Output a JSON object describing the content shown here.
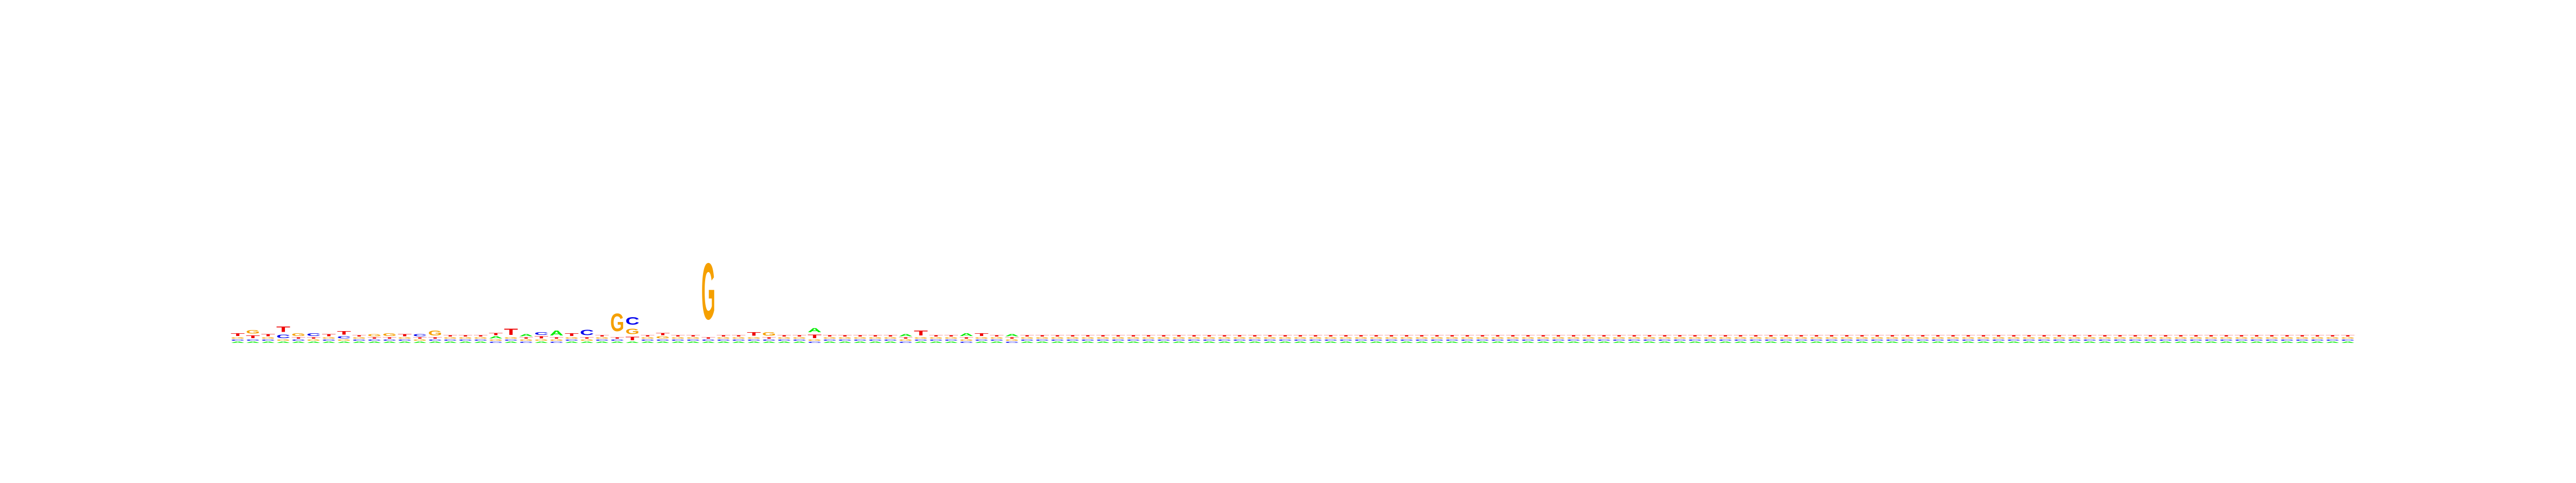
{
  "chart_data": {
    "type": "sequence-logo",
    "title": "",
    "xlabel": "",
    "ylabel": "",
    "alphabet": [
      "A",
      "C",
      "G",
      "T"
    ],
    "colors": {
      "A": "#00ee00",
      "C": "#0000ee",
      "G": "#f5a000",
      "T": "#ee0000"
    },
    "ylim": [
      0,
      2
    ],
    "positions": [
      {
        "i": 1,
        "A": 0.02,
        "C": 0.02,
        "G": 0.02,
        "T": 0.04
      },
      {
        "i": 2,
        "A": 0.02,
        "C": 0.02,
        "G": 0.05,
        "T": 0.04
      },
      {
        "i": 3,
        "A": 0.02,
        "C": 0.02,
        "G": 0.02,
        "T": 0.03
      },
      {
        "i": 4,
        "A": 0.02,
        "C": 0.05,
        "G": 0.02,
        "T": 0.08
      },
      {
        "i": 5,
        "A": 0.02,
        "C": 0.02,
        "G": 0.04,
        "T": 0.02
      },
      {
        "i": 6,
        "A": 0.02,
        "C": 0.04,
        "G": 0.02,
        "T": 0.02
      },
      {
        "i": 7,
        "A": 0.02,
        "C": 0.02,
        "G": 0.02,
        "T": 0.03
      },
      {
        "i": 8,
        "A": 0.02,
        "C": 0.03,
        "G": 0.02,
        "T": 0.05
      },
      {
        "i": 9,
        "A": 0.02,
        "C": 0.02,
        "G": 0.02,
        "T": 0.02
      },
      {
        "i": 10,
        "A": 0.02,
        "C": 0.02,
        "G": 0.03,
        "T": 0.02
      },
      {
        "i": 11,
        "A": 0.02,
        "C": 0.02,
        "G": 0.04,
        "T": 0.02
      },
      {
        "i": 12,
        "A": 0.02,
        "C": 0.02,
        "G": 0.02,
        "T": 0.03
      },
      {
        "i": 13,
        "A": 0.02,
        "C": 0.03,
        "G": 0.02,
        "T": 0.02
      },
      {
        "i": 14,
        "A": 0.02,
        "C": 0.02,
        "G": 0.07,
        "T": 0.02
      },
      {
        "i": 15,
        "A": 0.02,
        "C": 0.02,
        "G": 0.02,
        "T": 0.02
      },
      {
        "i": 16,
        "A": 0.02,
        "C": 0.02,
        "G": 0.02,
        "T": 0.02
      },
      {
        "i": 17,
        "A": 0.02,
        "C": 0.02,
        "G": 0.02,
        "T": 0.02
      },
      {
        "i": 18,
        "A": 0.03,
        "C": 0.02,
        "G": 0.02,
        "T": 0.03
      },
      {
        "i": 19,
        "A": 0.02,
        "C": 0.02,
        "G": 0.02,
        "T": 0.09
      },
      {
        "i": 20,
        "A": 0.03,
        "C": 0.02,
        "G": 0.02,
        "T": 0.02
      },
      {
        "i": 21,
        "A": 0.02,
        "C": 0.04,
        "G": 0.02,
        "T": 0.03
      },
      {
        "i": 22,
        "A": 0.07,
        "C": 0.02,
        "G": 0.02,
        "T": 0.02
      },
      {
        "i": 23,
        "A": 0.02,
        "C": 0.02,
        "G": 0.02,
        "T": 0.04
      },
      {
        "i": 24,
        "A": 0.02,
        "C": 0.08,
        "G": 0.02,
        "T": 0.02
      },
      {
        "i": 25,
        "A": 0.02,
        "C": 0.02,
        "G": 0.02,
        "T": 0.02
      },
      {
        "i": 26,
        "A": 0.02,
        "C": 0.02,
        "G": 0.26,
        "T": 0.02
      },
      {
        "i": 27,
        "A": 0.02,
        "C": 0.11,
        "G": 0.08,
        "T": 0.05
      },
      {
        "i": 28,
        "A": 0.02,
        "C": 0.02,
        "G": 0.02,
        "T": 0.02
      },
      {
        "i": 29,
        "A": 0.02,
        "C": 0.02,
        "G": 0.03,
        "T": 0.03
      },
      {
        "i": 30,
        "A": 0.02,
        "C": 0.02,
        "G": 0.02,
        "T": 0.02
      },
      {
        "i": 31,
        "A": 0.02,
        "C": 0.02,
        "G": 0.02,
        "T": 0.02
      },
      {
        "i": 32,
        "A": 0.02,
        "C": 0.02,
        "G": 0.82,
        "T": 0.02
      },
      {
        "i": 33,
        "A": 0.02,
        "C": 0.02,
        "G": 0.02,
        "T": 0.02
      },
      {
        "i": 34,
        "A": 0.02,
        "C": 0.02,
        "G": 0.02,
        "T": 0.02
      },
      {
        "i": 35,
        "A": 0.02,
        "C": 0.02,
        "G": 0.02,
        "T": 0.05
      },
      {
        "i": 36,
        "A": 0.02,
        "C": 0.02,
        "G": 0.05,
        "T": 0.02
      },
      {
        "i": 37,
        "A": 0.02,
        "C": 0.02,
        "G": 0.02,
        "T": 0.02
      },
      {
        "i": 38,
        "A": 0.02,
        "C": 0.02,
        "G": 0.02,
        "T": 0.02
      },
      {
        "i": 39,
        "A": 0.06,
        "C": 0.02,
        "G": 0.02,
        "T": 0.05
      },
      {
        "i": 40,
        "A": 0.02,
        "C": 0.02,
        "G": 0.02,
        "T": 0.02
      },
      {
        "i": 41,
        "A": 0.02,
        "C": 0.02,
        "G": 0.02,
        "T": 0.02
      },
      {
        "i": 42,
        "A": 0.02,
        "C": 0.02,
        "G": 0.02,
        "T": 0.02
      },
      {
        "i": 43,
        "A": 0.02,
        "C": 0.02,
        "G": 0.02,
        "T": 0.02
      },
      {
        "i": 44,
        "A": 0.02,
        "C": 0.02,
        "G": 0.02,
        "T": 0.02
      },
      {
        "i": 45,
        "A": 0.03,
        "C": 0.02,
        "G": 0.02,
        "T": 0.02
      },
      {
        "i": 46,
        "A": 0.02,
        "C": 0.02,
        "G": 0.02,
        "T": 0.07
      },
      {
        "i": 47,
        "A": 0.02,
        "C": 0.02,
        "G": 0.02,
        "T": 0.02
      },
      {
        "i": 48,
        "A": 0.02,
        "C": 0.02,
        "G": 0.02,
        "T": 0.02
      },
      {
        "i": 49,
        "A": 0.04,
        "C": 0.02,
        "G": 0.02,
        "T": 0.02
      },
      {
        "i": 50,
        "A": 0.02,
        "C": 0.02,
        "G": 0.02,
        "T": 0.04
      },
      {
        "i": 51,
        "A": 0.02,
        "C": 0.02,
        "G": 0.02,
        "T": 0.02
      },
      {
        "i": 52,
        "A": 0.03,
        "C": 0.02,
        "G": 0.02,
        "T": 0.02
      },
      {
        "i": 53,
        "A": 0.02,
        "C": 0.02,
        "G": 0.02,
        "T": 0.02
      },
      {
        "i": 54,
        "A": 0.02,
        "C": 0.02,
        "G": 0.02,
        "T": 0.02
      },
      {
        "i": 55,
        "A": 0.02,
        "C": 0.02,
        "G": 0.02,
        "T": 0.02
      },
      {
        "i": 56,
        "A": 0.02,
        "C": 0.02,
        "G": 0.02,
        "T": 0.02
      },
      {
        "i": 57,
        "A": 0.02,
        "C": 0.02,
        "G": 0.02,
        "T": 0.02
      },
      {
        "i": 58,
        "A": 0.02,
        "C": 0.02,
        "G": 0.02,
        "T": 0.02
      },
      {
        "i": 59,
        "A": 0.02,
        "C": 0.02,
        "G": 0.02,
        "T": 0.02
      },
      {
        "i": 60,
        "A": 0.02,
        "C": 0.02,
        "G": 0.02,
        "T": 0.02
      },
      {
        "i": 61,
        "A": 0.02,
        "C": 0.02,
        "G": 0.02,
        "T": 0.02
      },
      {
        "i": 62,
        "A": 0.02,
        "C": 0.02,
        "G": 0.02,
        "T": 0.02
      },
      {
        "i": 63,
        "A": 0.02,
        "C": 0.02,
        "G": 0.02,
        "T": 0.02
      },
      {
        "i": 64,
        "A": 0.02,
        "C": 0.02,
        "G": 0.02,
        "T": 0.02
      },
      {
        "i": 65,
        "A": 0.02,
        "C": 0.02,
        "G": 0.02,
        "T": 0.02
      },
      {
        "i": 66,
        "A": 0.02,
        "C": 0.02,
        "G": 0.02,
        "T": 0.02
      },
      {
        "i": 67,
        "A": 0.02,
        "C": 0.02,
        "G": 0.02,
        "T": 0.02
      },
      {
        "i": 68,
        "A": 0.02,
        "C": 0.02,
        "G": 0.02,
        "T": 0.02
      },
      {
        "i": 69,
        "A": 0.02,
        "C": 0.02,
        "G": 0.02,
        "T": 0.02
      },
      {
        "i": 70,
        "A": 0.02,
        "C": 0.02,
        "G": 0.02,
        "T": 0.02
      },
      {
        "i": 71,
        "A": 0.02,
        "C": 0.02,
        "G": 0.02,
        "T": 0.02
      },
      {
        "i": 72,
        "A": 0.02,
        "C": 0.02,
        "G": 0.02,
        "T": 0.02
      },
      {
        "i": 73,
        "A": 0.02,
        "C": 0.02,
        "G": 0.02,
        "T": 0.02
      },
      {
        "i": 74,
        "A": 0.02,
        "C": 0.02,
        "G": 0.02,
        "T": 0.02
      },
      {
        "i": 75,
        "A": 0.02,
        "C": 0.02,
        "G": 0.02,
        "T": 0.02
      },
      {
        "i": 76,
        "A": 0.02,
        "C": 0.02,
        "G": 0.02,
        "T": 0.02
      },
      {
        "i": 77,
        "A": 0.02,
        "C": 0.02,
        "G": 0.02,
        "T": 0.02
      },
      {
        "i": 78,
        "A": 0.02,
        "C": 0.02,
        "G": 0.02,
        "T": 0.02
      },
      {
        "i": 79,
        "A": 0.02,
        "C": 0.02,
        "G": 0.02,
        "T": 0.02
      },
      {
        "i": 80,
        "A": 0.02,
        "C": 0.02,
        "G": 0.02,
        "T": 0.02
      },
      {
        "i": 81,
        "A": 0.02,
        "C": 0.02,
        "G": 0.02,
        "T": 0.02
      },
      {
        "i": 82,
        "A": 0.02,
        "C": 0.02,
        "G": 0.02,
        "T": 0.02
      },
      {
        "i": 83,
        "A": 0.02,
        "C": 0.02,
        "G": 0.02,
        "T": 0.02
      },
      {
        "i": 84,
        "A": 0.02,
        "C": 0.02,
        "G": 0.02,
        "T": 0.02
      },
      {
        "i": 85,
        "A": 0.02,
        "C": 0.02,
        "G": 0.02,
        "T": 0.02
      },
      {
        "i": 86,
        "A": 0.02,
        "C": 0.02,
        "G": 0.02,
        "T": 0.02
      },
      {
        "i": 87,
        "A": 0.02,
        "C": 0.02,
        "G": 0.02,
        "T": 0.02
      },
      {
        "i": 88,
        "A": 0.02,
        "C": 0.02,
        "G": 0.02,
        "T": 0.02
      },
      {
        "i": 89,
        "A": 0.02,
        "C": 0.02,
        "G": 0.02,
        "T": 0.02
      },
      {
        "i": 90,
        "A": 0.02,
        "C": 0.02,
        "G": 0.02,
        "T": 0.02
      },
      {
        "i": 91,
        "A": 0.02,
        "C": 0.02,
        "G": 0.02,
        "T": 0.02
      },
      {
        "i": 92,
        "A": 0.02,
        "C": 0.02,
        "G": 0.02,
        "T": 0.02
      },
      {
        "i": 93,
        "A": 0.02,
        "C": 0.02,
        "G": 0.02,
        "T": 0.02
      },
      {
        "i": 94,
        "A": 0.02,
        "C": 0.02,
        "G": 0.02,
        "T": 0.02
      },
      {
        "i": 95,
        "A": 0.02,
        "C": 0.02,
        "G": 0.02,
        "T": 0.02
      },
      {
        "i": 96,
        "A": 0.02,
        "C": 0.02,
        "G": 0.02,
        "T": 0.02
      },
      {
        "i": 97,
        "A": 0.02,
        "C": 0.02,
        "G": 0.02,
        "T": 0.02
      },
      {
        "i": 98,
        "A": 0.02,
        "C": 0.02,
        "G": 0.02,
        "T": 0.02
      },
      {
        "i": 99,
        "A": 0.02,
        "C": 0.02,
        "G": 0.02,
        "T": 0.02
      },
      {
        "i": 100,
        "A": 0.02,
        "C": 0.02,
        "G": 0.02,
        "T": 0.02
      },
      {
        "i": 101,
        "A": 0.02,
        "C": 0.02,
        "G": 0.02,
        "T": 0.02
      },
      {
        "i": 102,
        "A": 0.02,
        "C": 0.02,
        "G": 0.02,
        "T": 0.02
      },
      {
        "i": 103,
        "A": 0.02,
        "C": 0.02,
        "G": 0.02,
        "T": 0.02
      },
      {
        "i": 104,
        "A": 0.02,
        "C": 0.02,
        "G": 0.02,
        "T": 0.02
      },
      {
        "i": 105,
        "A": 0.02,
        "C": 0.02,
        "G": 0.02,
        "T": 0.02
      },
      {
        "i": 106,
        "A": 0.02,
        "C": 0.02,
        "G": 0.02,
        "T": 0.02
      },
      {
        "i": 107,
        "A": 0.02,
        "C": 0.02,
        "G": 0.02,
        "T": 0.02
      },
      {
        "i": 108,
        "A": 0.02,
        "C": 0.02,
        "G": 0.02,
        "T": 0.02
      },
      {
        "i": 109,
        "A": 0.02,
        "C": 0.02,
        "G": 0.02,
        "T": 0.02
      },
      {
        "i": 110,
        "A": 0.02,
        "C": 0.02,
        "G": 0.02,
        "T": 0.02
      },
      {
        "i": 111,
        "A": 0.02,
        "C": 0.02,
        "G": 0.02,
        "T": 0.02
      },
      {
        "i": 112,
        "A": 0.02,
        "C": 0.02,
        "G": 0.02,
        "T": 0.02
      },
      {
        "i": 113,
        "A": 0.02,
        "C": 0.02,
        "G": 0.02,
        "T": 0.02
      },
      {
        "i": 114,
        "A": 0.02,
        "C": 0.02,
        "G": 0.02,
        "T": 0.02
      },
      {
        "i": 115,
        "A": 0.02,
        "C": 0.02,
        "G": 0.02,
        "T": 0.02
      },
      {
        "i": 116,
        "A": 0.02,
        "C": 0.02,
        "G": 0.02,
        "T": 0.02
      },
      {
        "i": 117,
        "A": 0.02,
        "C": 0.02,
        "G": 0.02,
        "T": 0.02
      },
      {
        "i": 118,
        "A": 0.02,
        "C": 0.02,
        "G": 0.02,
        "T": 0.02
      },
      {
        "i": 119,
        "A": 0.02,
        "C": 0.02,
        "G": 0.02,
        "T": 0.02
      },
      {
        "i": 120,
        "A": 0.02,
        "C": 0.02,
        "G": 0.02,
        "T": 0.02
      },
      {
        "i": 121,
        "A": 0.02,
        "C": 0.02,
        "G": 0.02,
        "T": 0.02
      },
      {
        "i": 122,
        "A": 0.02,
        "C": 0.02,
        "G": 0.02,
        "T": 0.02
      },
      {
        "i": 123,
        "A": 0.02,
        "C": 0.02,
        "G": 0.02,
        "T": 0.02
      },
      {
        "i": 124,
        "A": 0.02,
        "C": 0.02,
        "G": 0.02,
        "T": 0.02
      },
      {
        "i": 125,
        "A": 0.02,
        "C": 0.02,
        "G": 0.02,
        "T": 0.02
      },
      {
        "i": 126,
        "A": 0.02,
        "C": 0.02,
        "G": 0.02,
        "T": 0.02
      },
      {
        "i": 127,
        "A": 0.02,
        "C": 0.02,
        "G": 0.02,
        "T": 0.02
      },
      {
        "i": 128,
        "A": 0.02,
        "C": 0.02,
        "G": 0.02,
        "T": 0.02
      },
      {
        "i": 129,
        "A": 0.02,
        "C": 0.02,
        "G": 0.02,
        "T": 0.02
      },
      {
        "i": 130,
        "A": 0.02,
        "C": 0.02,
        "G": 0.02,
        "T": 0.02
      },
      {
        "i": 131,
        "A": 0.02,
        "C": 0.02,
        "G": 0.02,
        "T": 0.02
      },
      {
        "i": 132,
        "A": 0.02,
        "C": 0.02,
        "G": 0.02,
        "T": 0.02
      },
      {
        "i": 133,
        "A": 0.02,
        "C": 0.02,
        "G": 0.02,
        "T": 0.02
      },
      {
        "i": 134,
        "A": 0.02,
        "C": 0.02,
        "G": 0.02,
        "T": 0.02
      },
      {
        "i": 135,
        "A": 0.02,
        "C": 0.02,
        "G": 0.02,
        "T": 0.02
      },
      {
        "i": 136,
        "A": 0.02,
        "C": 0.02,
        "G": 0.02,
        "T": 0.02
      },
      {
        "i": 137,
        "A": 0.02,
        "C": 0.02,
        "G": 0.02,
        "T": 0.02
      },
      {
        "i": 138,
        "A": 0.02,
        "C": 0.02,
        "G": 0.02,
        "T": 0.02
      },
      {
        "i": 139,
        "A": 0.02,
        "C": 0.02,
        "G": 0.02,
        "T": 0.02
      },
      {
        "i": 140,
        "A": 0.02,
        "C": 0.02,
        "G": 0.02,
        "T": 0.02
      }
    ]
  }
}
